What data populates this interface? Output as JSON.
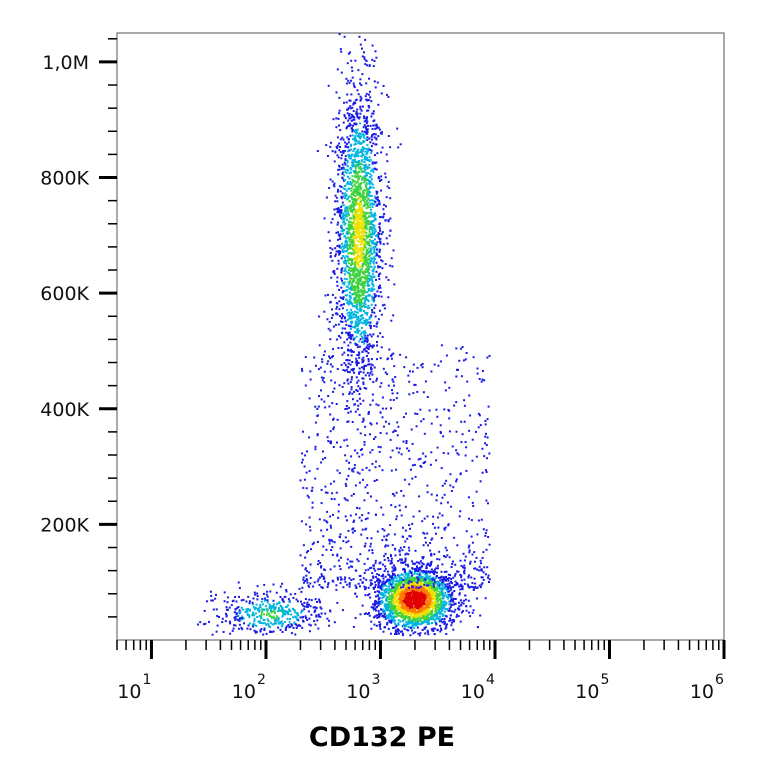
{
  "chart_data": {
    "type": "scatter",
    "subtype": "flow-cytometry-density-plot",
    "title": "",
    "xlabel": "CD132 PE",
    "ylabel": "",
    "x_scale": "log",
    "xlim": [
      5,
      1000000
    ],
    "ylim": [
      0,
      1050000
    ],
    "x_ticks": [
      {
        "value": 10,
        "base": "10",
        "exp": "1"
      },
      {
        "value": 100,
        "base": "10",
        "exp": "2"
      },
      {
        "value": 1000,
        "base": "10",
        "exp": "3"
      },
      {
        "value": 10000,
        "base": "10",
        "exp": "4"
      },
      {
        "value": 100000,
        "base": "10",
        "exp": "5"
      },
      {
        "value": 1000000,
        "base": "10",
        "exp": "6"
      }
    ],
    "y_ticks": [
      {
        "value": 200000,
        "label": "200K"
      },
      {
        "value": 400000,
        "label": "400K"
      },
      {
        "value": 600000,
        "label": "600K"
      },
      {
        "value": 800000,
        "label": "800K"
      },
      {
        "value": 1000000,
        "label": "1,0M"
      }
    ],
    "grid": false,
    "legend": "none",
    "color_scale": [
      "#1a1ae6",
      "#00b4e0",
      "#3ed23e",
      "#f0e000",
      "#ff7a00",
      "#e00000"
    ],
    "populations": [
      {
        "x_center": 650,
        "y_center": 700000,
        "x_spread_log": 0.09,
        "y_spread": 110000,
        "events": 2400,
        "peak_density": 0.55
      },
      {
        "x_center": 2000,
        "y_center": 70000,
        "x_spread_log": 0.15,
        "y_spread": 24000,
        "events": 2300,
        "peak_density": 1.0
      },
      {
        "x_center": 110,
        "y_center": 45000,
        "x_spread_log": 0.2,
        "y_spread": 17000,
        "events": 450,
        "peak_density": 0.35
      }
    ]
  }
}
